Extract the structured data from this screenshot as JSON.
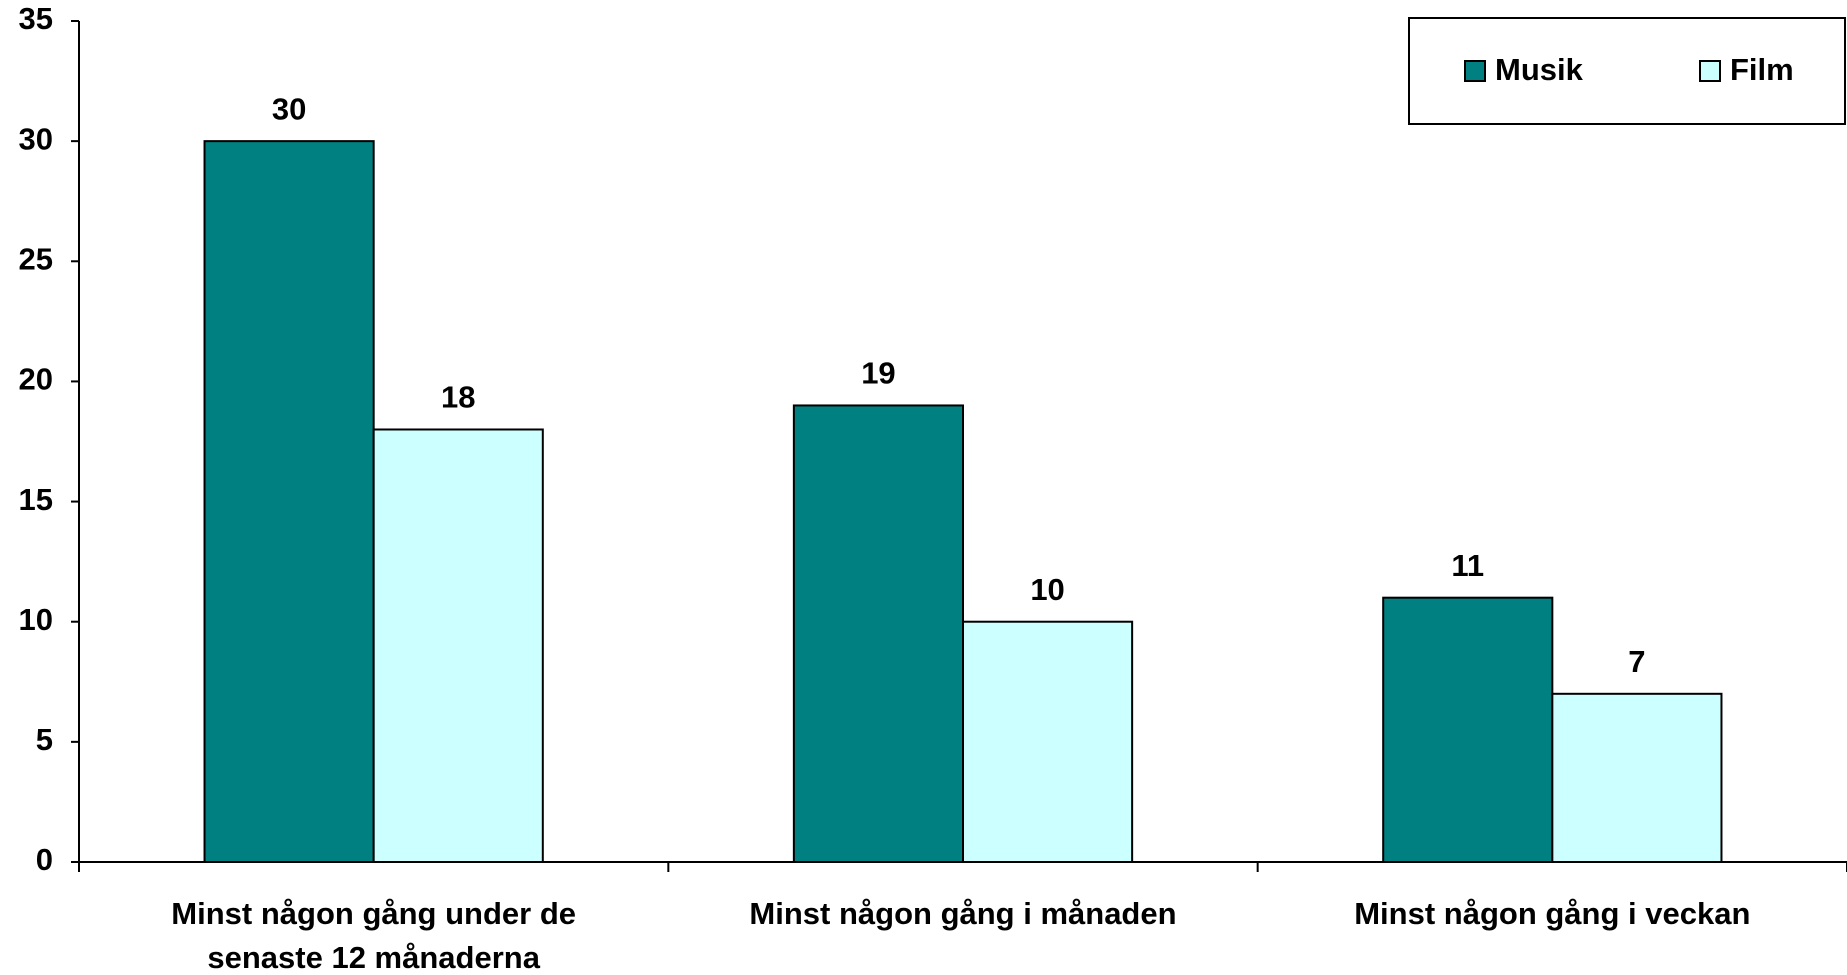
{
  "chart_data": {
    "type": "bar",
    "categories": [
      "Minst någon gång under de senaste 12 månaderna",
      "Minst någon gång i månaden",
      "Minst någon gång i veckan"
    ],
    "series": [
      {
        "name": "Musik",
        "color": "#008080",
        "values": [
          30,
          19,
          11
        ]
      },
      {
        "name": "Film",
        "color": "#ccffff",
        "values": [
          18,
          10,
          7
        ]
      }
    ],
    "ylim": [
      0,
      35
    ],
    "yticks": [
      0,
      5,
      10,
      15,
      20,
      25,
      30,
      35
    ],
    "grid": false,
    "legend": "top-right"
  }
}
